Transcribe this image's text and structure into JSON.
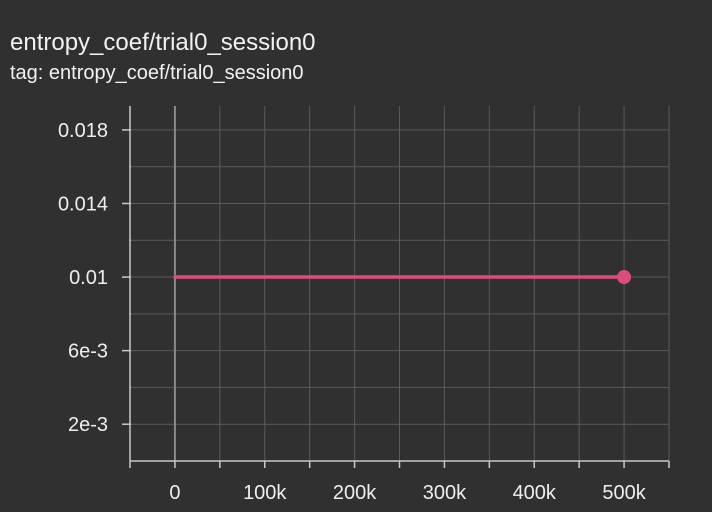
{
  "card": {
    "title": "entropy_coef/trial0_session0",
    "tag_line": "tag: entropy_coef/trial0_session0"
  },
  "colors": {
    "background": "#303030",
    "series": "#dc4c7f",
    "grid": "#5a5a5a",
    "axis": "#c8c8c8",
    "zero_line": "#8a8a8a"
  },
  "chart_data": {
    "type": "line",
    "title": "entropy_coef/trial0_session0",
    "xlabel": "",
    "ylabel": "",
    "grid": true,
    "xlim": [
      -50000,
      550000
    ],
    "ylim": [
      0,
      0.0193
    ],
    "x_ticks": [
      0,
      100000,
      200000,
      300000,
      400000,
      500000
    ],
    "x_tick_labels": [
      "0",
      "100k",
      "200k",
      "300k",
      "400k",
      "500k"
    ],
    "x_minor_ticks": [
      -50000,
      50000,
      150000,
      250000,
      350000,
      450000,
      550000
    ],
    "y_ticks": [
      0.002,
      0.006,
      0.01,
      0.014,
      0.018
    ],
    "y_tick_labels": [
      "2e-3",
      "6e-3",
      "0.01",
      "0.014",
      "0.018"
    ],
    "y_minor_ticks": [
      0,
      0.004,
      0.008,
      0.012,
      0.016
    ],
    "series": [
      {
        "x": [
          0,
          500000
        ],
        "y": [
          0.01,
          0.01
        ]
      }
    ]
  }
}
